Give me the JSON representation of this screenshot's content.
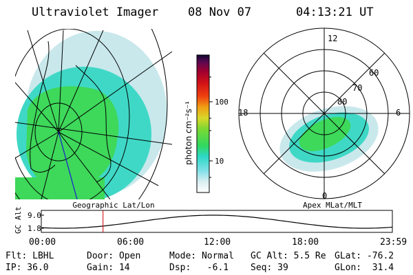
{
  "header": {
    "instrument": "Ultraviolet Imager",
    "date": "08 Nov 07",
    "time": "04:13:21 UT"
  },
  "colorbar": {
    "unit_label": "photon cm⁻²s⁻¹",
    "ticks": [
      "100",
      "10"
    ]
  },
  "left_map": {
    "caption": "Geographic Lat/Lon"
  },
  "right_map": {
    "caption": "Apex MLat/MLT",
    "mlt_labels": [
      "12",
      "18",
      "6",
      "0"
    ],
    "lat_labels": [
      "60",
      "70",
      "80"
    ]
  },
  "altitude_plot": {
    "ylabel": "GC Alt",
    "yticks": [
      "9.0",
      "1.8"
    ],
    "xticks": [
      "00:00",
      "06:00",
      "12:00",
      "18:00",
      "23:59"
    ],
    "marker_time_hours": 4.22,
    "marker_color": "#cc0000"
  },
  "status": {
    "flt": "Flt: LBHL",
    "ip": "IP: 36.0",
    "door": "Door: Open",
    "gain": "Gain: 14",
    "mode": "Mode: Normal",
    "dsp": "Dsp:   -6.1",
    "gcalt": "GC Alt: 5.5 Re",
    "seq": "Seq: 39",
    "glat": "GLat: -76.2",
    "glon": "GLon:  31.4"
  },
  "colors": {
    "aurora_green": "#3ed85a",
    "aurora_cyan": "#3ed8c8",
    "aurora_pale": "#bfe6ea",
    "grid": "#000000",
    "meridian_blue": "#1a1ad0"
  }
}
